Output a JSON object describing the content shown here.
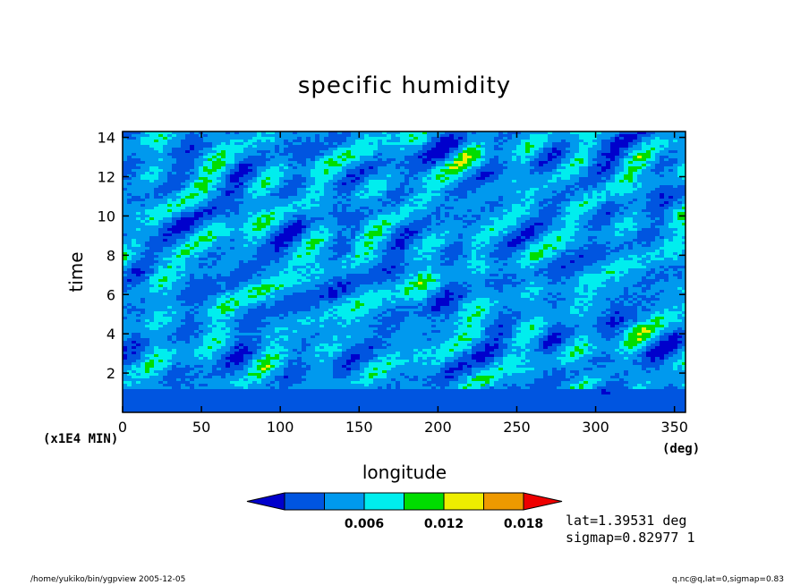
{
  "chart_data": {
    "type": "heatmap",
    "title": "specific humidity",
    "xlabel": "longitude",
    "ylabel": "time",
    "x_unit": "(deg)",
    "y_unit": "(x1E4 MIN)",
    "xlim": [
      0,
      357
    ],
    "ylim": [
      0,
      14.3
    ],
    "x_ticks": [
      0,
      50,
      100,
      150,
      200,
      250,
      300,
      350
    ],
    "y_ticks": [
      2,
      4,
      6,
      8,
      10,
      12,
      14
    ],
    "colorbar": {
      "levels": [
        0.003,
        0.006,
        0.009,
        0.012,
        0.015,
        0.018,
        0.021
      ],
      "labels": [
        "0.006",
        "0.012",
        "0.018"
      ],
      "colors": [
        "#0000cc",
        "#0055e0",
        "#0099ee",
        "#00eeee",
        "#00dd00",
        "#eeee00",
        "#ee9900",
        "#ee0000"
      ]
    },
    "annotations": [
      "lat=1.39531 deg",
      "sigmap=0.82977 1"
    ]
  },
  "footer": {
    "left": "/home/yukiko/bin/ygpview  2005-12-05",
    "right": "q.nc@q,lat=0,sigmap=0.83"
  }
}
